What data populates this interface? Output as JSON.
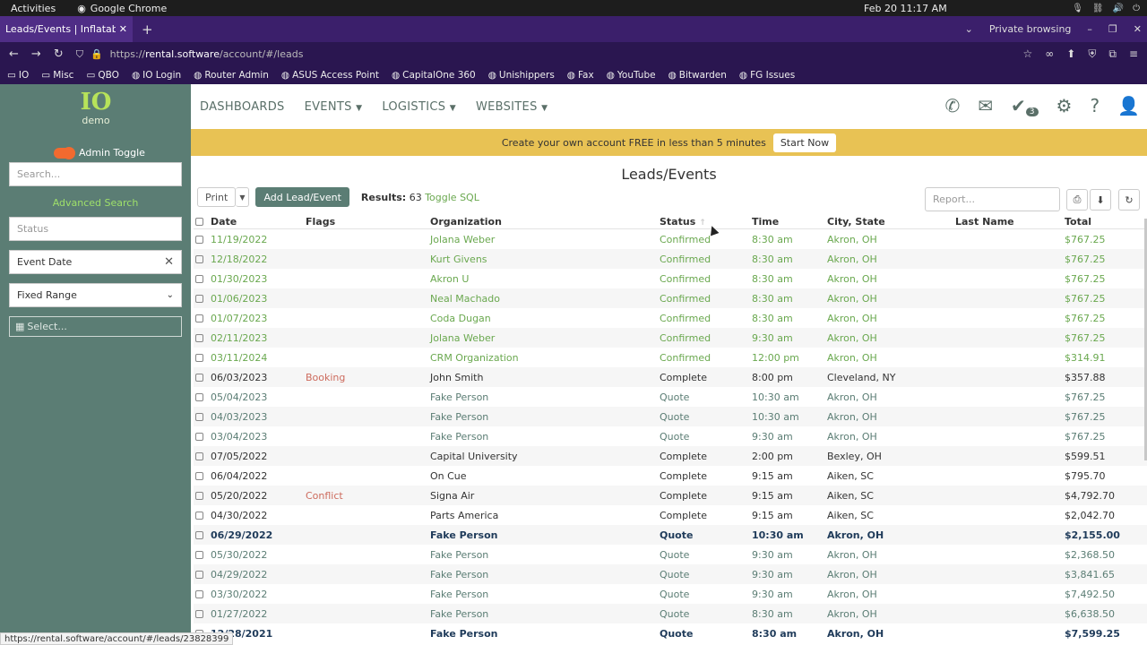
{
  "os": {
    "activities": "Activities",
    "app": "Google Chrome",
    "clock": "Feb 20  11:17 AM"
  },
  "browser": {
    "tab_title": "Leads/Events | Inflatable",
    "private": "Private browsing",
    "url_prefix": "https://",
    "url_host": "rental.software",
    "url_path": "/account/#/leads"
  },
  "bookmarks": [
    "IO",
    "Misc",
    "QBO",
    "IO Login",
    "Router Admin",
    "ASUS Access Point",
    "CapitalOne 360",
    "Unishippers",
    "Fax",
    "YouTube",
    "Bitwarden",
    "FG Issues"
  ],
  "sidebar": {
    "logo_text": "IO",
    "logo_sub": "demo",
    "admin_toggle": "Admin Toggle",
    "search_placeholder": "Search...",
    "advanced_search": "Advanced Search",
    "status_placeholder": "Status",
    "event_date": "Event Date",
    "range": "Fixed Range",
    "select_date": "Select..."
  },
  "nav": {
    "items": [
      "DASHBOARDS",
      "EVENTS",
      "LOGISTICS",
      "WEBSITES"
    ],
    "task_count": "3"
  },
  "promo": {
    "text": "Create your own account FREE in less than 5 minutes",
    "button": "Start Now"
  },
  "page": {
    "title": "Leads/Events",
    "print": "Print",
    "add": "Add Lead/Event",
    "results_label": "Results:",
    "results_count": "63",
    "toggle_sql": "Toggle SQL",
    "report_placeholder": "Report..."
  },
  "table": {
    "headers": {
      "date": "Date",
      "flags": "Flags",
      "org": "Organization",
      "status": "Status",
      "time": "Time",
      "city": "City, State",
      "last": "Last Name",
      "total": "Total"
    },
    "rows": [
      {
        "style": "g",
        "date": "11/19/2022",
        "flags": "",
        "org": "Jolana Weber",
        "status": "Confirmed",
        "time": "8:30 am",
        "city": "Akron, OH",
        "last": "",
        "total": "$767.25"
      },
      {
        "style": "g",
        "date": "12/18/2022",
        "flags": "",
        "org": "Kurt Givens",
        "status": "Confirmed",
        "time": "8:30 am",
        "city": "Akron, OH",
        "last": "",
        "total": "$767.25"
      },
      {
        "style": "g",
        "date": "01/30/2023",
        "flags": "",
        "org": "Akron U",
        "status": "Confirmed",
        "time": "8:30 am",
        "city": "Akron, OH",
        "last": "",
        "total": "$767.25"
      },
      {
        "style": "g",
        "date": "01/06/2023",
        "flags": "",
        "org": "Neal Machado",
        "status": "Confirmed",
        "time": "8:30 am",
        "city": "Akron, OH",
        "last": "",
        "total": "$767.25"
      },
      {
        "style": "g",
        "date": "01/07/2023",
        "flags": "",
        "org": "Coda Dugan",
        "status": "Confirmed",
        "time": "8:30 am",
        "city": "Akron, OH",
        "last": "",
        "total": "$767.25"
      },
      {
        "style": "g",
        "date": "02/11/2023",
        "flags": "",
        "org": "Jolana Weber",
        "status": "Confirmed",
        "time": "9:30 am",
        "city": "Akron, OH",
        "last": "",
        "total": "$767.25"
      },
      {
        "style": "g",
        "date": "03/11/2024",
        "flags": "",
        "org": "CRM Organization",
        "status": "Confirmed",
        "time": "12:00 pm",
        "city": "Akron, OH",
        "last": "",
        "total": "$314.91"
      },
      {
        "style": "k",
        "date": "06/03/2023",
        "flags": "Booking",
        "org": "John Smith",
        "status": "Complete",
        "time": "8:00 pm",
        "city": "Cleveland, NY",
        "last": "",
        "total": "$357.88"
      },
      {
        "style": "b",
        "date": "05/04/2023",
        "flags": "",
        "org": "Fake Person",
        "status": "Quote",
        "time": "10:30 am",
        "city": "Akron, OH",
        "last": "",
        "total": "$767.25"
      },
      {
        "style": "b",
        "date": "04/03/2023",
        "flags": "",
        "org": "Fake Person",
        "status": "Quote",
        "time": "10:30 am",
        "city": "Akron, OH",
        "last": "",
        "total": "$767.25"
      },
      {
        "style": "b",
        "date": "03/04/2023",
        "flags": "",
        "org": "Fake Person",
        "status": "Quote",
        "time": "9:30 am",
        "city": "Akron, OH",
        "last": "",
        "total": "$767.25"
      },
      {
        "style": "k",
        "date": "07/05/2022",
        "flags": "",
        "org": "Capital University",
        "status": "Complete",
        "time": "2:00 pm",
        "city": "Bexley, OH",
        "last": "",
        "total": "$599.51"
      },
      {
        "style": "k",
        "date": "06/04/2022",
        "flags": "",
        "org": "On Cue",
        "status": "Complete",
        "time": "9:15 am",
        "city": "Aiken, SC",
        "last": "",
        "total": "$795.70"
      },
      {
        "style": "k",
        "date": "05/20/2022",
        "flags": "Conflict",
        "org": "Signa Air",
        "status": "Complete",
        "time": "9:15 am",
        "city": "Aiken, SC",
        "last": "",
        "total": "$4,792.70"
      },
      {
        "style": "k",
        "date": "04/30/2022",
        "flags": "",
        "org": "Parts America",
        "status": "Complete",
        "time": "9:15 am",
        "city": "Aiken, SC",
        "last": "",
        "total": "$2,042.70"
      },
      {
        "style": "n",
        "date": "06/29/2022",
        "flags": "",
        "org": "Fake Person",
        "status": "Quote",
        "time": "10:30 am",
        "city": "Akron, OH",
        "last": "",
        "total": "$2,155.00"
      },
      {
        "style": "b",
        "date": "05/30/2022",
        "flags": "",
        "org": "Fake Person",
        "status": "Quote",
        "time": "9:30 am",
        "city": "Akron, OH",
        "last": "",
        "total": "$2,368.50"
      },
      {
        "style": "b",
        "date": "04/29/2022",
        "flags": "",
        "org": "Fake Person",
        "status": "Quote",
        "time": "9:30 am",
        "city": "Akron, OH",
        "last": "",
        "total": "$3,841.65"
      },
      {
        "style": "b",
        "date": "03/30/2022",
        "flags": "",
        "org": "Fake Person",
        "status": "Quote",
        "time": "9:30 am",
        "city": "Akron, OH",
        "last": "",
        "total": "$7,492.50"
      },
      {
        "style": "b",
        "date": "01/27/2022",
        "flags": "",
        "org": "Fake Person",
        "status": "Quote",
        "time": "8:30 am",
        "city": "Akron, OH",
        "last": "",
        "total": "$6,638.50"
      },
      {
        "style": "n",
        "date": "12/28/2021",
        "flags": "",
        "org": "Fake Person",
        "status": "Quote",
        "time": "8:30 am",
        "city": "Akron, OH",
        "last": "",
        "total": "$7,599.25"
      }
    ]
  },
  "status_url": "https://rental.software/account/#/leads/23828399"
}
